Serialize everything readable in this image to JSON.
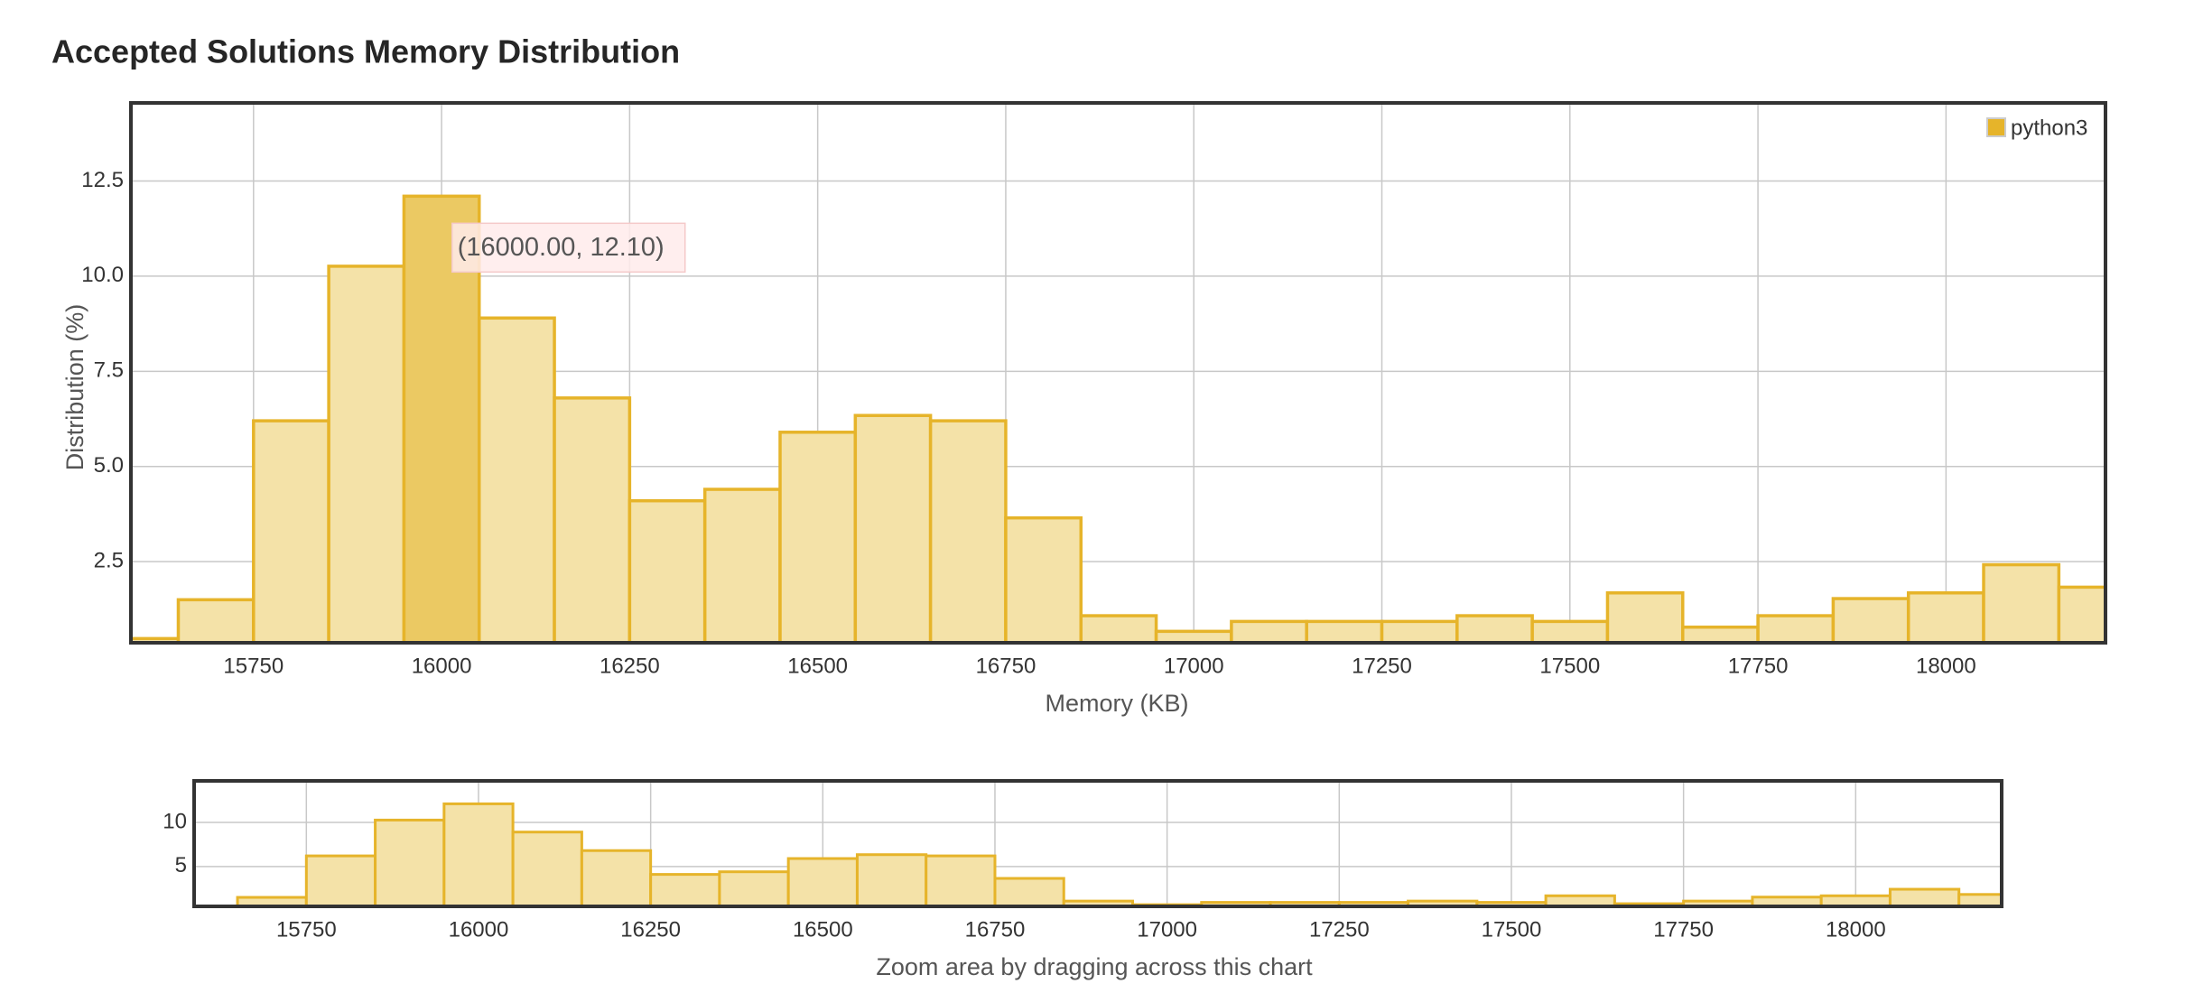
{
  "chart_data": {
    "type": "histogram",
    "title": "Accepted Solutions Memory Distribution",
    "x_label": "Memory (KB)",
    "y_label": "Distribution (%)",
    "bins": [
      15550,
      15650,
      15750,
      15850,
      15950,
      16050,
      16150,
      16250,
      16350,
      16450,
      16550,
      16650,
      16750,
      16850,
      16950,
      17050,
      17150,
      17250,
      17350,
      17450,
      17550,
      17650,
      17750,
      17850,
      17950,
      18050,
      18150,
      18250
    ],
    "series": [
      {
        "name": "python3",
        "color": "#e6b42a",
        "values": [
          0.48,
          1.5,
          6.2,
          10.26,
          12.1,
          8.9,
          6.8,
          4.1,
          4.4,
          5.9,
          6.34,
          6.2,
          3.65,
          1.08,
          0.67,
          0.93,
          0.93,
          0.93,
          1.08,
          0.93,
          1.68,
          0.78,
          1.08,
          1.53,
          1.68,
          2.42,
          1.83
        ]
      }
    ],
    "xlim": [
      15587,
      18212
    ],
    "ylim": [
      0.37,
      14.55
    ],
    "xticks": [
      15750,
      16000,
      16250,
      16500,
      16750,
      17000,
      17250,
      17500,
      17750,
      18000
    ],
    "yticks": [
      2.5,
      {
        "value": 5,
        "label": "5.0"
      },
      7.5,
      {
        "value": 10,
        "label": "10.0"
      },
      12.5
    ],
    "grid": true,
    "legend": "top-right",
    "tooltip": {
      "text": "(16000.00, 12.10)",
      "index": 4
    },
    "navigator": {
      "ylim": [
        0.48,
        14.7
      ],
      "yticks": [
        5,
        10
      ],
      "caption": "Zoom area by dragging across this chart"
    }
  }
}
